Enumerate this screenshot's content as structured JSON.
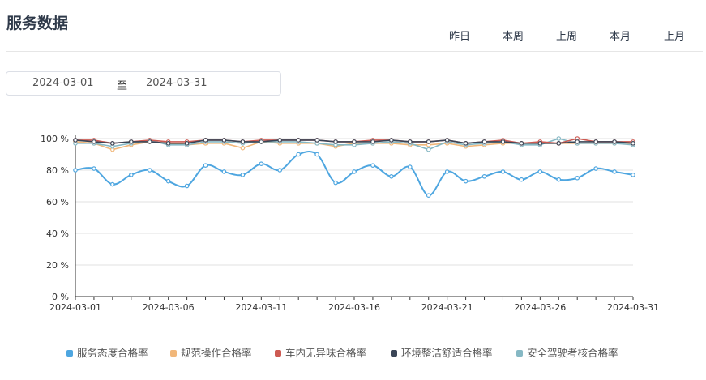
{
  "page": {
    "title": "服务数据",
    "tabs": [
      "昨日",
      "本周",
      "上周",
      "本月",
      "上月"
    ],
    "date_range": {
      "start": "2024-03-01",
      "separator": "至",
      "end": "2024-03-31"
    }
  },
  "colors": {
    "grid": "#e0e0e0",
    "axis": "#333333",
    "axis_text": "#333333"
  },
  "chart_data": {
    "type": "line",
    "title": "",
    "xlabel": "",
    "ylabel": "",
    "x": [
      "2024-03-01",
      "2024-03-02",
      "2024-03-03",
      "2024-03-04",
      "2024-03-05",
      "2024-03-06",
      "2024-03-07",
      "2024-03-08",
      "2024-03-09",
      "2024-03-10",
      "2024-03-11",
      "2024-03-12",
      "2024-03-13",
      "2024-03-14",
      "2024-03-15",
      "2024-03-16",
      "2024-03-17",
      "2024-03-18",
      "2024-03-19",
      "2024-03-20",
      "2024-03-21",
      "2024-03-22",
      "2024-03-23",
      "2024-03-24",
      "2024-03-25",
      "2024-03-26",
      "2024-03-27",
      "2024-03-28",
      "2024-03-29",
      "2024-03-30",
      "2024-03-31"
    ],
    "x_tick_labels": [
      "2024-03-01",
      "2024-03-06",
      "2024-03-11",
      "2024-03-16",
      "2024-03-21",
      "2024-03-26",
      "2024-03-31"
    ],
    "y_tick_labels": [
      "0 %",
      "20 %",
      "40 %",
      "60 %",
      "80 %",
      "100 %"
    ],
    "ylim": [
      0,
      100
    ],
    "grid": true,
    "legend_position": "bottom",
    "series": [
      {
        "name": "服务态度合格率",
        "color": "#4ea6e0",
        "smooth": true,
        "values": [
          80,
          81,
          71,
          77,
          80,
          73,
          70,
          83,
          79,
          77,
          84,
          80,
          90,
          90,
          72,
          79,
          83,
          76,
          82,
          64,
          79,
          73,
          76,
          79,
          74,
          79,
          74,
          75,
          81,
          79,
          77
        ]
      },
      {
        "name": "规范操作合格率",
        "color": "#f1b77a",
        "smooth": false,
        "values": [
          98,
          97,
          93,
          96,
          98,
          97,
          96,
          97,
          97,
          94,
          98,
          97,
          97,
          97,
          95,
          97,
          97,
          97,
          96,
          96,
          97,
          95,
          96,
          97,
          97,
          97,
          97,
          97,
          97,
          97,
          97
        ]
      },
      {
        "name": "车内无异味合格率",
        "color": "#cd5a52",
        "smooth": false,
        "values": [
          99,
          99,
          97,
          98,
          99,
          98,
          98,
          99,
          99,
          98,
          99,
          99,
          99,
          99,
          98,
          98,
          99,
          99,
          98,
          98,
          99,
          97,
          98,
          99,
          97,
          98,
          97,
          100,
          98,
          98,
          98
        ]
      },
      {
        "name": "环境整洁舒适合格率",
        "color": "#3a4556",
        "smooth": false,
        "values": [
          99,
          98,
          97,
          98,
          98,
          97,
          97,
          99,
          99,
          98,
          98,
          99,
          99,
          99,
          98,
          98,
          98,
          99,
          98,
          98,
          99,
          97,
          98,
          98,
          97,
          97,
          97,
          98,
          98,
          98,
          97
        ]
      },
      {
        "name": "安全驾驶考核合格率",
        "color": "#86b8c4",
        "smooth": false,
        "values": [
          97,
          97,
          95,
          97,
          99,
          96,
          96,
          98,
          98,
          97,
          98,
          98,
          98,
          97,
          96,
          96,
          97,
          98,
          97,
          93,
          98,
          96,
          97,
          98,
          96,
          96,
          100,
          97,
          97,
          97,
          96
        ]
      }
    ]
  }
}
